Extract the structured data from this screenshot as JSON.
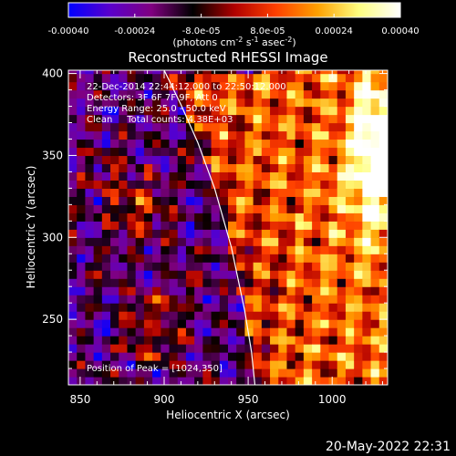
{
  "colorbar": {
    "ticks": [
      "-0.00040",
      "-0.00024",
      "-8.0e-05",
      "8.0e-05",
      "0.00024",
      "0.00040"
    ],
    "tick_values": [
      -0.0004,
      -0.00024,
      -8e-05,
      8e-05,
      0.00024,
      0.0004
    ],
    "range": [
      -0.0004,
      0.0004
    ],
    "units": "(photons cm",
    "units_exp1": "-2",
    "units_mid1": " s",
    "units_exp2": "-1",
    "units_mid2": " asec",
    "units_exp3": "-2",
    "units_end": ")",
    "colormap": [
      "#0000ff",
      "#5a00cc",
      "#800080",
      "#000000",
      "#b00000",
      "#ff4000",
      "#ffa000",
      "#ffff80",
      "#ffffff"
    ]
  },
  "chart_data": {
    "type": "heatmap",
    "title": "Reconstructed RHESSI Image",
    "xlabel": "Heliocentric X (arcsec)",
    "ylabel": "Heliocentric Y (arcsec)",
    "xlim": [
      843,
      1033
    ],
    "ylim": [
      210,
      402
    ],
    "xticks": [
      850,
      900,
      950,
      1000
    ],
    "yticks": [
      250,
      300,
      350,
      400
    ],
    "limb_curve": [
      [
        900,
        402
      ],
      [
        910,
        381
      ],
      [
        920,
        358
      ],
      [
        930,
        330
      ],
      [
        940,
        294
      ],
      [
        948,
        255
      ],
      [
        952,
        230
      ],
      [
        954,
        210
      ]
    ],
    "peak": [
      1024,
      350
    ],
    "annotations": [
      "22-Dec-2014 22:44:12.000 to 22:50:12.000",
      "Detectors: 3F 6F 7F 9F, Att 0",
      "Energy Range: 25.0 - 50.0 keV",
      "Clean     Total counts: 4.38E+03"
    ],
    "peak_label": "Position of Peak = [1024,350]"
  },
  "footer": {
    "timestamp": "20-May-2022 22:31"
  }
}
